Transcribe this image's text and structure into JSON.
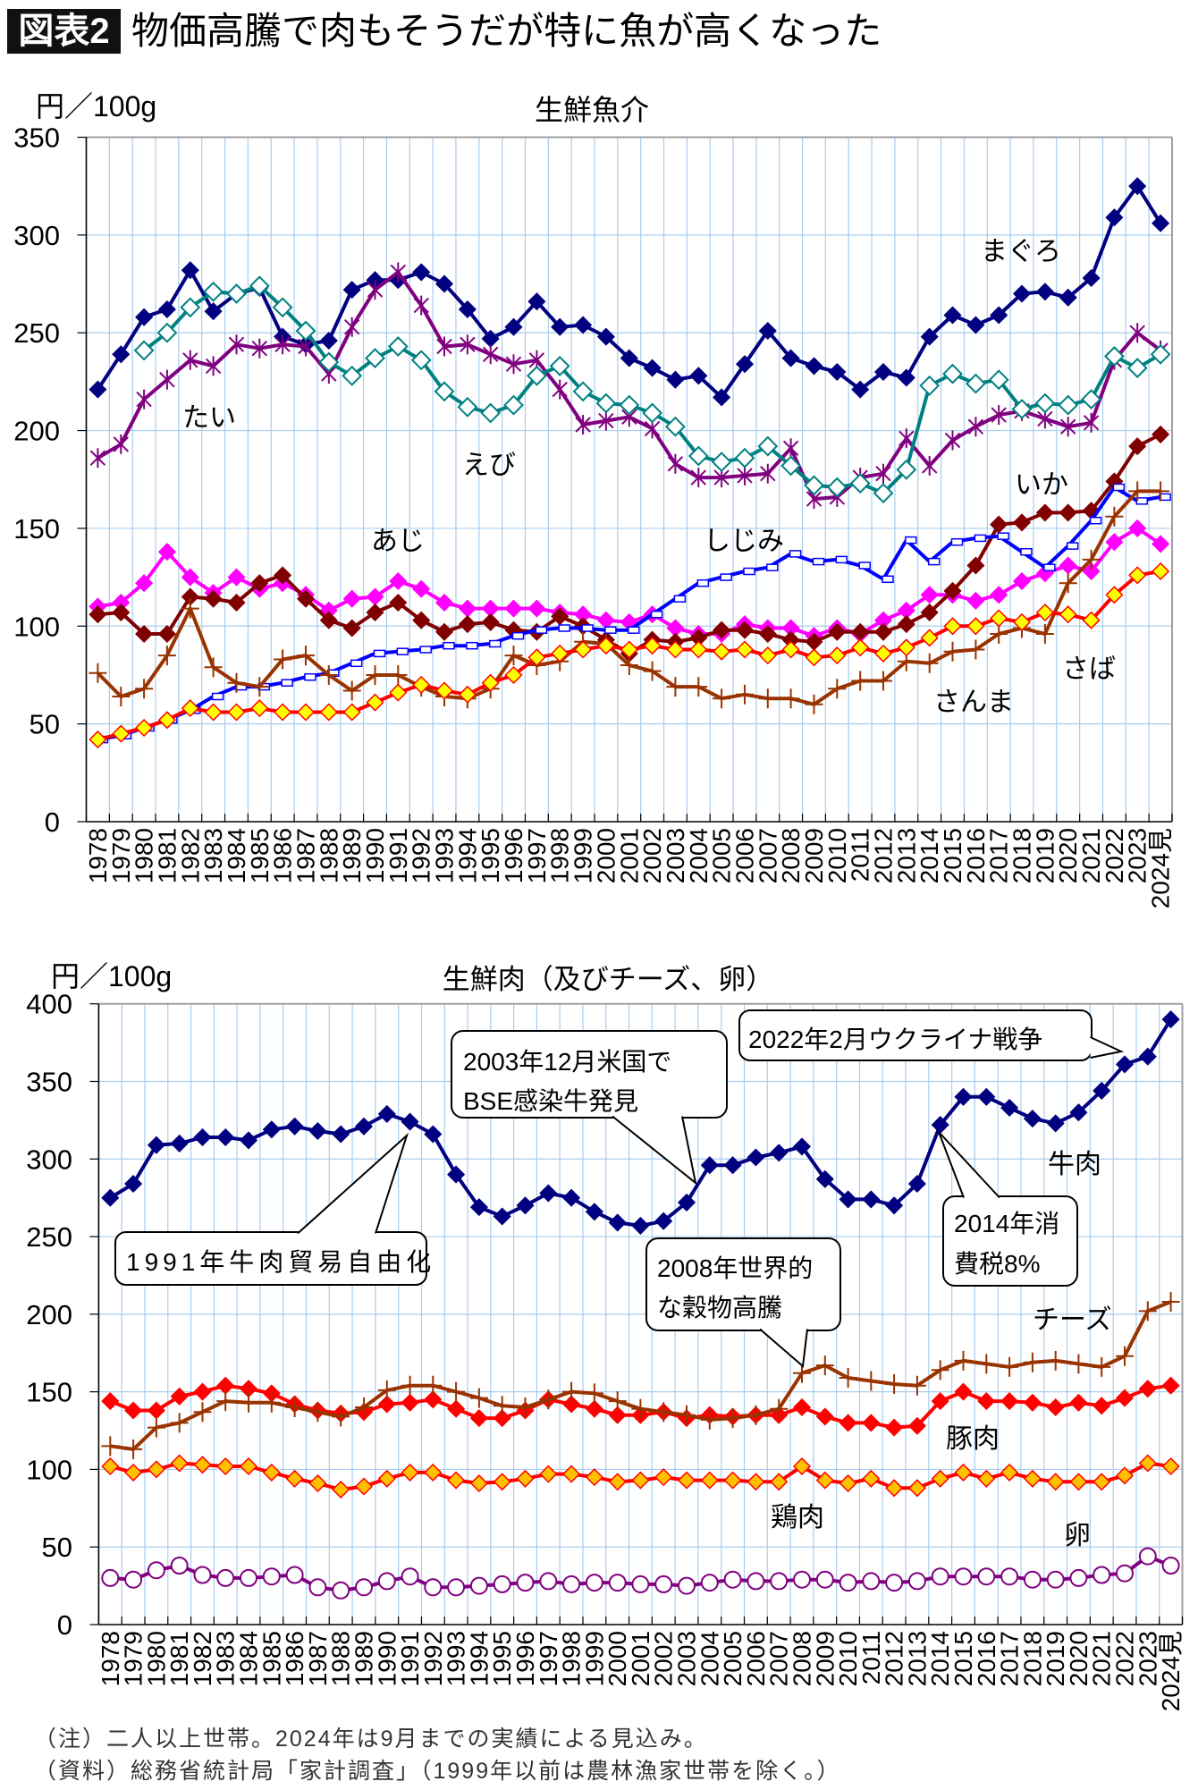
{
  "header": {
    "badge": "図表2",
    "title": "物価高騰で肉もそうだが特に魚が高くなった"
  },
  "chart_data": [
    {
      "type": "line",
      "title": "生鮮魚介",
      "ylabel": "円／100g",
      "xlabel": "",
      "ylim": [
        0,
        350
      ],
      "yticks": [
        0,
        50,
        100,
        150,
        200,
        250,
        300,
        350
      ],
      "grid": true,
      "legend": "none (inline labels next to lines)",
      "categories": [
        "1978",
        "1979",
        "1980",
        "1981",
        "1982",
        "1983",
        "1984",
        "1985",
        "1986",
        "1987",
        "1988",
        "1989",
        "1990",
        "1991",
        "1992",
        "1993",
        "1994",
        "1995",
        "1996",
        "1997",
        "1998",
        "1999",
        "2000",
        "2001",
        "2002",
        "2003",
        "2004",
        "2005",
        "2006",
        "2007",
        "2008",
        "2009",
        "2010",
        "2011",
        "2012",
        "2013",
        "2014",
        "2015",
        "2016",
        "2017",
        "2018",
        "2019",
        "2020",
        "2021",
        "2022",
        "2023",
        "2024見"
      ],
      "series": [
        {
          "name": "まぐろ",
          "color": "#000080",
          "marker": {
            "shape": "diamond",
            "fill": "#000080",
            "stroke": "#000080"
          },
          "values": [
            221,
            239,
            258,
            262,
            282,
            261,
            270,
            273,
            248,
            244,
            246,
            272,
            277,
            277,
            281,
            275,
            262,
            247,
            253,
            266,
            253,
            254,
            248,
            237,
            232,
            226,
            228,
            217,
            234,
            251,
            237,
            233,
            230,
            221,
            230,
            227,
            248,
            259,
            254,
            259,
            270,
            271,
            268,
            278,
            309,
            325,
            306
          ]
        },
        {
          "name": "たい",
          "color": "#800080",
          "marker": {
            "shape": "star",
            "fill": "none",
            "stroke": "#800080"
          },
          "values": [
            186,
            193,
            216,
            226,
            236,
            233,
            244,
            242,
            244,
            243,
            229,
            253,
            272,
            281,
            264,
            243,
            244,
            239,
            234,
            236,
            221,
            203,
            205,
            207,
            201,
            183,
            176,
            176,
            177,
            178,
            191,
            165,
            166,
            176,
            178,
            196,
            182,
            195,
            202,
            208,
            210,
            206,
            202,
            204,
            236,
            250,
            241
          ]
        },
        {
          "name": "えび",
          "color": "#008080",
          "marker": {
            "shape": "diamond-open",
            "fill": "#FFFFFF",
            "stroke": "#008080"
          },
          "values": [
            null,
            null,
            241,
            250,
            263,
            271,
            270,
            274,
            263,
            251,
            235,
            228,
            237,
            243,
            236,
            220,
            212,
            209,
            213,
            228,
            233,
            220,
            214,
            213,
            209,
            202,
            187,
            184,
            186,
            192,
            182,
            172,
            171,
            173,
            168,
            180,
            223,
            229,
            224,
            226,
            211,
            214,
            213,
            216,
            238,
            232,
            239
          ]
        },
        {
          "name": "あじ",
          "color": "#FF00FF",
          "marker": {
            "shape": "diamond",
            "fill": "#FF00FF",
            "stroke": "#FF00FF"
          },
          "values": [
            110,
            112,
            122,
            138,
            125,
            117,
            125,
            119,
            122,
            116,
            108,
            114,
            115,
            123,
            119,
            112,
            109,
            109,
            109,
            109,
            107,
            106,
            103,
            102,
            106,
            99,
            96,
            96,
            101,
            99,
            99,
            95,
            99,
            96,
            103,
            108,
            116,
            116,
            113,
            116,
            123,
            127,
            131,
            128,
            143,
            150,
            142
          ]
        },
        {
          "name": "いか",
          "color": "#800000",
          "marker": {
            "shape": "diamond",
            "fill": "#800000",
            "stroke": "#800000"
          },
          "values": [
            106,
            107,
            96,
            96,
            115,
            114,
            112,
            122,
            126,
            114,
            103,
            99,
            107,
            112,
            103,
            97,
            101,
            102,
            98,
            97,
            105,
            100,
            93,
            86,
            93,
            92,
            94,
            98,
            98,
            96,
            93,
            92,
            97,
            97,
            97,
            101,
            107,
            118,
            131,
            152,
            153,
            158,
            158,
            159,
            174,
            192,
            198
          ]
        },
        {
          "name": "しじみ",
          "color": "#0000FF",
          "marker": {
            "shape": "dash",
            "fill": "#FFFFFF",
            "stroke": "#0000FF"
          },
          "values": [
            42,
            44,
            48,
            52,
            57,
            64,
            69,
            69,
            71,
            74,
            76,
            81,
            86,
            87,
            88,
            90,
            90,
            91,
            95,
            98,
            99,
            99,
            98,
            98,
            106,
            114,
            122,
            125,
            128,
            130,
            137,
            133,
            134,
            131,
            124,
            144,
            133,
            143,
            145,
            146,
            138,
            130,
            141,
            154,
            171,
            164,
            166
          ]
        },
        {
          "name": "さんま",
          "color": "#993300",
          "marker": {
            "shape": "plus",
            "fill": "none",
            "stroke": "#993300"
          },
          "values": [
            76,
            64,
            68,
            85,
            109,
            79,
            71,
            69,
            83,
            85,
            75,
            67,
            75,
            75,
            69,
            64,
            63,
            68,
            85,
            80,
            82,
            92,
            91,
            80,
            77,
            69,
            69,
            63,
            65,
            63,
            63,
            60,
            68,
            72,
            72,
            82,
            81,
            87,
            88,
            96,
            99,
            96,
            122,
            134,
            156,
            169,
            169
          ]
        },
        {
          "name": "さば",
          "color": "#FF0000",
          "marker": {
            "shape": "diamond",
            "fill": "#FFFF00",
            "stroke": "#FF0000"
          },
          "values": [
            42,
            45,
            48,
            52,
            58,
            56,
            56,
            58,
            56,
            56,
            56,
            56,
            61,
            66,
            70,
            67,
            65,
            71,
            75,
            84,
            86,
            88,
            90,
            88,
            90,
            88,
            88,
            87,
            88,
            85,
            88,
            84,
            85,
            89,
            86,
            89,
            94,
            100,
            100,
            104,
            102,
            107,
            106,
            103,
            116,
            126,
            128
          ]
        }
      ]
    },
    {
      "type": "line",
      "title": "生鮮肉（及びチーズ、卵）",
      "ylabel": "円／100g",
      "xlabel": "",
      "ylim": [
        0,
        400
      ],
      "yticks": [
        0,
        50,
        100,
        150,
        200,
        250,
        300,
        350,
        400
      ],
      "grid": true,
      "legend": "none (inline labels next to lines)",
      "categories": [
        "1978",
        "1979",
        "1980",
        "1981",
        "1982",
        "1983",
        "1984",
        "1985",
        "1986",
        "1987",
        "1988",
        "1989",
        "1990",
        "1991",
        "1992",
        "1993",
        "1994",
        "1995",
        "1996",
        "1997",
        "1998",
        "1999",
        "2000",
        "2001",
        "2002",
        "2003",
        "2004",
        "2005",
        "2006",
        "2007",
        "2008",
        "2009",
        "2010",
        "2011",
        "2012",
        "2013",
        "2014",
        "2015",
        "2016",
        "2017",
        "2018",
        "2019",
        "2020",
        "2021",
        "2022",
        "2023",
        "2024見"
      ],
      "series": [
        {
          "name": "牛肉",
          "color": "#000080",
          "marker": {
            "shape": "diamond",
            "fill": "#000080",
            "stroke": "#000080"
          },
          "values": [
            275,
            284,
            309,
            310,
            314,
            314,
            312,
            319,
            321,
            318,
            316,
            321,
            329,
            324,
            316,
            290,
            269,
            263,
            270,
            278,
            275,
            266,
            259,
            257,
            260,
            272,
            296,
            296,
            301,
            304,
            308,
            287,
            274,
            274,
            270,
            284,
            322,
            340,
            340,
            333,
            326,
            323,
            330,
            344,
            361,
            366,
            390
          ]
        },
        {
          "name": "豚肉",
          "color": "#FF0000",
          "marker": {
            "shape": "diamond",
            "fill": "#FF0000",
            "stroke": "#FF0000"
          },
          "values": [
            144,
            138,
            138,
            147,
            150,
            154,
            152,
            149,
            142,
            138,
            136,
            137,
            142,
            143,
            145,
            139,
            133,
            133,
            138,
            145,
            142,
            139,
            135,
            135,
            137,
            133,
            135,
            134,
            135,
            135,
            140,
            134,
            130,
            130,
            127,
            128,
            144,
            150,
            144,
            144,
            143,
            140,
            143,
            141,
            146,
            152,
            154
          ]
        },
        {
          "name": "チーズ",
          "color": "#993300",
          "marker": {
            "shape": "plus",
            "fill": "none",
            "stroke": "#993300"
          },
          "values": [
            115,
            113,
            127,
            130,
            137,
            144,
            143,
            143,
            140,
            137,
            134,
            140,
            151,
            154,
            154,
            150,
            146,
            141,
            140,
            145,
            150,
            149,
            144,
            139,
            137,
            135,
            132,
            133,
            135,
            139,
            162,
            167,
            159,
            157,
            155,
            154,
            164,
            170,
            168,
            166,
            169,
            170,
            168,
            166,
            173,
            202,
            208
          ]
        },
        {
          "name": "鶏肉",
          "color": "#FF0000",
          "marker": {
            "shape": "diamond",
            "fill": "#FFC000",
            "stroke": "#FF0000"
          },
          "values": [
            102,
            98,
            100,
            104,
            103,
            102,
            102,
            98,
            94,
            91,
            87,
            89,
            94,
            98,
            98,
            93,
            91,
            92,
            94,
            97,
            97,
            95,
            92,
            93,
            95,
            93,
            93,
            93,
            92,
            92,
            102,
            93,
            91,
            94,
            88,
            88,
            94,
            98,
            94,
            98,
            94,
            92,
            92,
            92,
            96,
            104,
            102
          ]
        },
        {
          "name": "卵",
          "color": "#800080",
          "marker": {
            "shape": "circle",
            "fill": "#FFFFFF",
            "stroke": "#800080"
          },
          "values": [
            30,
            29,
            35,
            38,
            32,
            30,
            30,
            31,
            32,
            24,
            22,
            24,
            28,
            31,
            24,
            24,
            25,
            26,
            27,
            28,
            26,
            27,
            27,
            26,
            26,
            25,
            27,
            29,
            28,
            28,
            29,
            29,
            27,
            28,
            27,
            28,
            31,
            31,
            31,
            31,
            29,
            29,
            30,
            32,
            33,
            44,
            38
          ]
        }
      ],
      "annotations": [
        {
          "lines": [
            "2003年12月米国で",
            "BSE感染牛発見"
          ]
        },
        {
          "lines": [
            "2022年2月ウクライナ戦争"
          ]
        },
        {
          "lines": [
            "1991年牛肉貿易自由化"
          ]
        },
        {
          "lines": [
            "2008年世界的",
            "な穀物高騰"
          ]
        },
        {
          "lines": [
            "2014年消",
            "費税8%"
          ]
        }
      ]
    }
  ],
  "notes": {
    "note": "（注）二人以上世帯。2024年は9月までの実績による見込み。",
    "source": "（資料）総務省統計局「家計調査」（1999年以前は農林漁家世帯を除く。）"
  }
}
